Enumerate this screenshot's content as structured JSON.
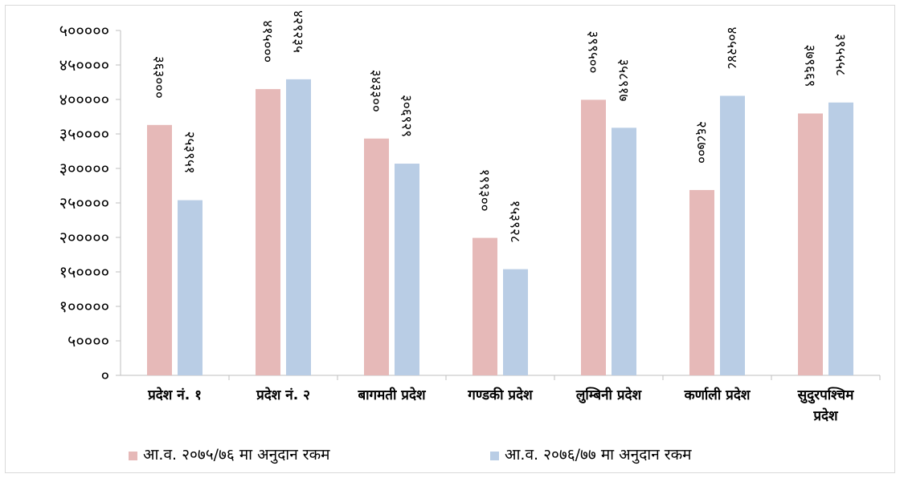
{
  "chart_data": {
    "type": "bar",
    "categories": [
      "प्रदेश नं. १",
      "प्रदेश नं. २",
      "बागमती प्रदेश",
      "गण्डकी प्रदेश",
      "लुम्बिनी प्रदेश",
      "कर्णाली प्रदेश",
      "सुदुरपश्चिम प्रदेश"
    ],
    "series": [
      {
        "name": "आ.व. २०७५/७६ मा अनुदान रकम",
        "color": "#e6b9b8",
        "values": [
          363000,
          415000,
          343300,
          199300,
          399500,
          268700,
          379669
        ],
        "labels": [
          "३६३०००",
          "४१५०००",
          "३४३३००",
          "१९९३००",
          "३९९५००",
          "२६८७००",
          "३७९६६९"
        ]
      },
      {
        "name": "आ.व. २०७६/७७ मा अनुदान रकम",
        "color": "#b9cde5",
        "values": [
          253951,
          429235,
          306929,
          153928,
          358917,
          405248,
          395558
        ],
        "labels": [
          "२५३९५१",
          "४२९२३५",
          "३०६९२९",
          "१५३९२८",
          "३५८९१७",
          "४०५२४८",
          "३९५५५८"
        ]
      }
    ],
    "ylim": [
      0,
      500000
    ],
    "yticks": [
      0,
      50000,
      100000,
      150000,
      200000,
      250000,
      300000,
      350000,
      400000,
      450000,
      500000
    ],
    "ytick_labels": [
      "०",
      "५००००",
      "१०००००",
      "१५००००",
      "२०००००",
      "२५००००",
      "३०००००",
      "३५००००",
      "४०००००",
      "४५००००",
      "५०००००"
    ],
    "grid": false,
    "legend_position": "bottom-left"
  }
}
